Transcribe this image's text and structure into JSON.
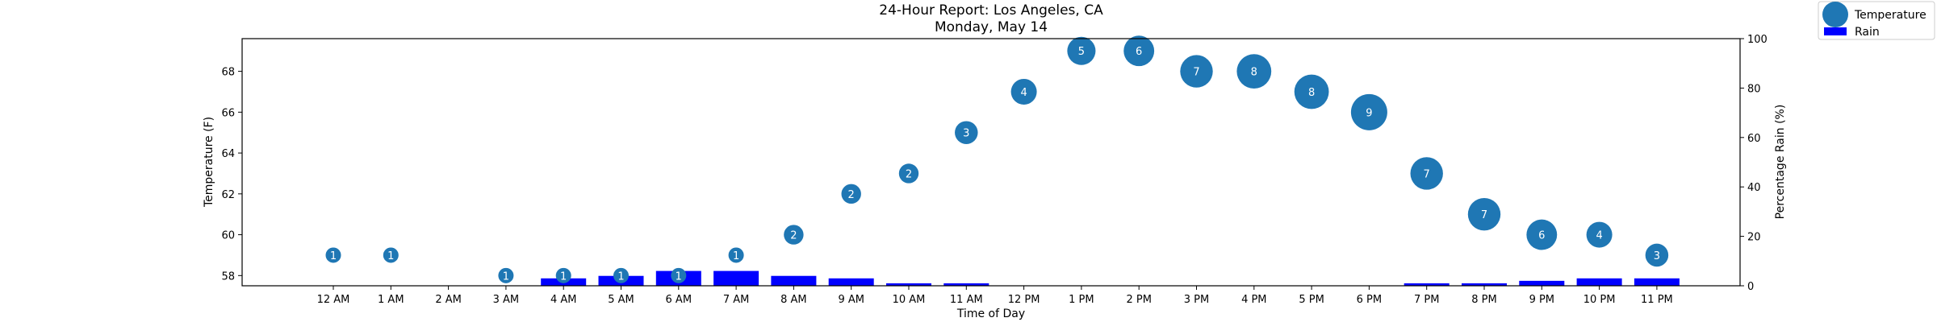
{
  "chart_data": {
    "type": "bar",
    "title": "24-Hour Report: Los Angeles, CA",
    "subtitle": "Monday, May 14",
    "xlabel": "Time of Day",
    "ylabel_left": "Temperature (F)",
    "ylabel_right": "Percentage Rain (%)",
    "categories": [
      "12 AM",
      "1 AM",
      "2 AM",
      "3 AM",
      "4 AM",
      "5 AM",
      "6 AM",
      "7 AM",
      "8 AM",
      "9 AM",
      "10 AM",
      "11 AM",
      "12 PM",
      "1 PM",
      "2 PM",
      "3 PM",
      "4 PM",
      "5 PM",
      "6 PM",
      "7 PM",
      "8 PM",
      "9 PM",
      "10 PM",
      "11 PM"
    ],
    "temperature": [
      59,
      59,
      null,
      58,
      58,
      58,
      58,
      59,
      60,
      62,
      63,
      65,
      67,
      69,
      69,
      68,
      68,
      67,
      66,
      63,
      61,
      60,
      60,
      59
    ],
    "bubble_labels": [
      1,
      1,
      null,
      1,
      1,
      1,
      1,
      1,
      2,
      2,
      2,
      3,
      4,
      5,
      6,
      7,
      8,
      8,
      9,
      7,
      7,
      6,
      4,
      3
    ],
    "rain": [
      0,
      0,
      0,
      0,
      3,
      4,
      6,
      6,
      4,
      3,
      1,
      1,
      0,
      0,
      0,
      0,
      0,
      0,
      0,
      1,
      1,
      2,
      3,
      3
    ],
    "ylim_left": [
      57.5,
      69.6
    ],
    "yticks_left": [
      58,
      60,
      62,
      64,
      66,
      68
    ],
    "ylim_right": [
      0,
      100
    ],
    "yticks_right": [
      0,
      20,
      40,
      60,
      80,
      100
    ],
    "legend": [
      {
        "name": "Temperature",
        "color": "#1f77b4",
        "marker": "circle"
      },
      {
        "name": "Rain",
        "color": "#0000ff",
        "marker": "rect"
      }
    ],
    "legend_position": "top-right",
    "colors": {
      "temperature": "#1f77b4",
      "rain": "#0000ff"
    }
  }
}
